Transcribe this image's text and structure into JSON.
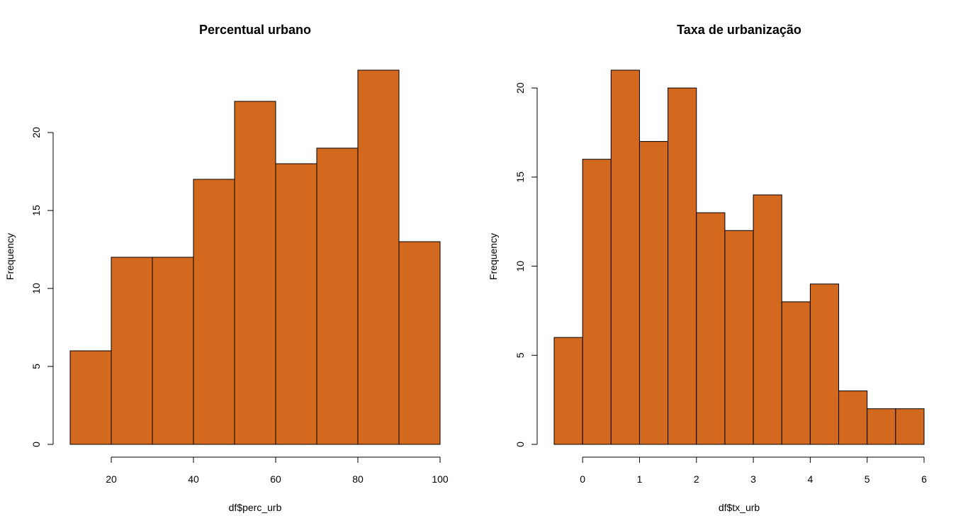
{
  "chart_data": [
    {
      "type": "bar",
      "title": "Percentual urbano",
      "xlabel": "df$perc_urb",
      "ylabel": "Frequency",
      "bins": [
        {
          "from": 10,
          "to": 20,
          "count": 6
        },
        {
          "from": 20,
          "to": 30,
          "count": 12
        },
        {
          "from": 30,
          "to": 40,
          "count": 12
        },
        {
          "from": 40,
          "to": 50,
          "count": 17
        },
        {
          "from": 50,
          "to": 60,
          "count": 22
        },
        {
          "from": 60,
          "to": 70,
          "count": 18
        },
        {
          "from": 70,
          "to": 80,
          "count": 19
        },
        {
          "from": 80,
          "to": 90,
          "count": 24
        },
        {
          "from": 90,
          "to": 100,
          "count": 13
        }
      ],
      "xlim": [
        10,
        100
      ],
      "ylim": [
        0,
        24
      ],
      "x_ticks": [
        20,
        40,
        60,
        80,
        100
      ],
      "y_ticks": [
        0,
        5,
        10,
        15,
        20
      ],
      "bar_color": "#D2691E",
      "grid": false,
      "legend": "none"
    },
    {
      "type": "bar",
      "title": "Taxa de urbanização",
      "xlabel": "df$tx_urb",
      "ylabel": "Frequency",
      "bins": [
        {
          "from": -0.5,
          "to": 0,
          "count": 6
        },
        {
          "from": 0,
          "to": 0.5,
          "count": 16
        },
        {
          "from": 0.5,
          "to": 1,
          "count": 21
        },
        {
          "from": 1,
          "to": 1.5,
          "count": 17
        },
        {
          "from": 1.5,
          "to": 2,
          "count": 20
        },
        {
          "from": 2,
          "to": 2.5,
          "count": 13
        },
        {
          "from": 2.5,
          "to": 3,
          "count": 12
        },
        {
          "from": 3,
          "to": 3.5,
          "count": 14
        },
        {
          "from": 3.5,
          "to": 4,
          "count": 8
        },
        {
          "from": 4,
          "to": 4.5,
          "count": 9
        },
        {
          "from": 4.5,
          "to": 5,
          "count": 3
        },
        {
          "from": 5,
          "to": 5.5,
          "count": 2
        },
        {
          "from": 5.5,
          "to": 6,
          "count": 2
        }
      ],
      "xlim": [
        -0.5,
        6
      ],
      "ylim": [
        0,
        21
      ],
      "x_ticks": [
        0,
        1,
        2,
        3,
        4,
        5,
        6
      ],
      "y_ticks": [
        0,
        5,
        10,
        15,
        20
      ],
      "bar_color": "#D2691E",
      "grid": false,
      "legend": "none"
    }
  ]
}
